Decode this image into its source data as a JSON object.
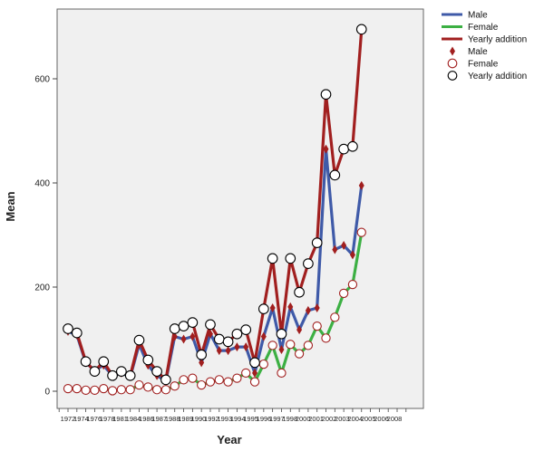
{
  "chart_data": {
    "type": "line",
    "xlabel": "Year",
    "ylabel": "Mean",
    "xlim": [
      1971,
      2010
    ],
    "ylim": [
      -20,
      740
    ],
    "x_tick_labels": [
      "1972",
      "1974",
      "1976",
      "1978",
      "1981",
      "1984",
      "1986",
      "1987",
      "1988",
      "1989",
      "1990",
      "1992",
      "1993",
      "1994",
      "1995",
      "1996",
      "1997",
      "1998",
      "2000",
      "2001",
      "2002",
      "2003",
      "2004",
      "2005",
      "2006",
      "2008"
    ],
    "y_ticks": [
      0,
      200,
      400,
      600
    ],
    "grid": false,
    "legend_position": "top-right",
    "legend": [
      {
        "label": "Male",
        "kind": "line",
        "color": "#3f5aa8"
      },
      {
        "label": "Female",
        "kind": "line",
        "color": "#3cb043"
      },
      {
        "label": "Yearly addition",
        "kind": "line",
        "color": "#a11f1f"
      },
      {
        "label": "Male",
        "kind": "diamond",
        "color": "#a11f1f"
      },
      {
        "label": "Female",
        "kind": "open-circle",
        "color": "#a11f1f"
      },
      {
        "label": "Yearly addition",
        "kind": "open-circle",
        "color": "#000000"
      }
    ],
    "series": [
      {
        "name": "Male",
        "color": "#3f5aa8",
        "marker": "diamond",
        "marker_color": "#a11f1f",
        "x": [
          1972,
          1973,
          1974,
          1975,
          1976,
          1977,
          1978,
          1979,
          1980,
          1981,
          1982,
          1983,
          1984,
          1985,
          1986,
          1987,
          1988,
          1989,
          1990,
          1991,
          1992,
          1993,
          1994,
          1995,
          1996,
          1997,
          1998,
          1999,
          2000,
          2001,
          2002,
          2003,
          2004,
          2005,
          2006,
          2007,
          2008,
          2009
        ],
        "y": [
          115,
          108,
          55,
          40,
          50,
          30,
          35,
          28,
          90,
          50,
          30,
          20,
          105,
          100,
          105,
          55,
          110,
          78,
          78,
          85,
          85,
          35,
          105,
          160,
          80,
          162,
          118,
          155,
          160,
          465,
          272,
          280,
          262,
          395,
          null,
          null,
          null,
          null
        ]
      },
      {
        "name": "Female",
        "color": "#3cb043",
        "marker": "open-circle",
        "marker_color": "#a11f1f",
        "x": [
          1972,
          1973,
          1974,
          1975,
          1976,
          1977,
          1978,
          1979,
          1980,
          1981,
          1982,
          1983,
          1984,
          1985,
          1986,
          1987,
          1988,
          1989,
          1990,
          1991,
          1992,
          1993,
          1994,
          1995,
          1996,
          1997,
          1998,
          1999,
          2000,
          2001,
          2002,
          2003,
          2004,
          2005,
          2006,
          2007,
          2008,
          2009
        ],
        "y": [
          5,
          5,
          2,
          2,
          5,
          1,
          3,
          3,
          12,
          8,
          3,
          3,
          10,
          22,
          25,
          12,
          18,
          22,
          18,
          25,
          35,
          18,
          52,
          88,
          35,
          90,
          72,
          88,
          125,
          102,
          142,
          188,
          205,
          305,
          null,
          null,
          null,
          null
        ]
      },
      {
        "name": "Yearly addition",
        "color": "#a11f1f",
        "marker": "open-circle",
        "marker_color": "#000000",
        "x": [
          1972,
          1973,
          1974,
          1975,
          1976,
          1977,
          1978,
          1979,
          1980,
          1981,
          1982,
          1983,
          1984,
          1985,
          1986,
          1987,
          1988,
          1989,
          1990,
          1991,
          1992,
          1993,
          1994,
          1995,
          1996,
          1997,
          1998,
          1999,
          2000,
          2001,
          2002,
          2003,
          2004,
          2005,
          2006,
          2007,
          2008,
          2009
        ],
        "y": [
          120,
          112,
          57,
          38,
          57,
          30,
          38,
          30,
          98,
          60,
          38,
          22,
          120,
          125,
          132,
          70,
          128,
          100,
          95,
          110,
          118,
          55,
          158,
          255,
          110,
          255,
          190,
          245,
          285,
          570,
          415,
          465,
          470,
          695,
          null,
          null,
          null,
          null
        ]
      }
    ]
  }
}
